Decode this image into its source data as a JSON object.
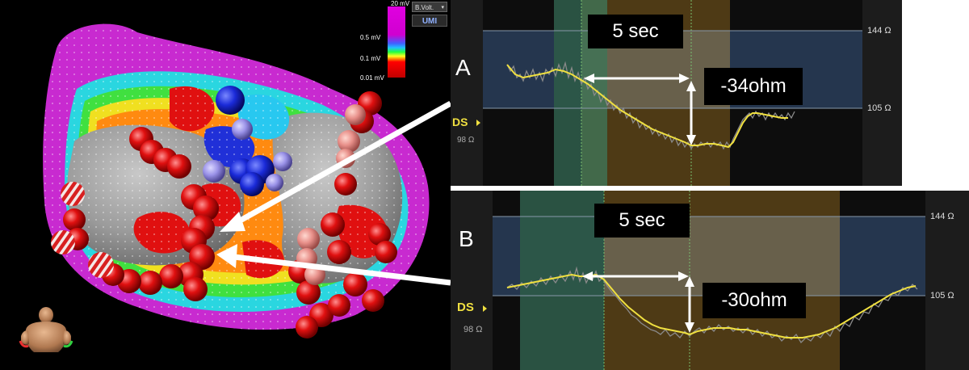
{
  "legend": {
    "max": "20 mV",
    "high": "0.5 mV",
    "low": "0.1 mV",
    "min": "0.01 mV",
    "dropdown": "B.Volt.",
    "logo": "UMI"
  },
  "panel_a": {
    "letter": "A",
    "time_label": "5 sec",
    "delta_label": "-34ohm",
    "upper_ohm": "144 Ω",
    "lower_ohm": "105 Ω",
    "ds_label": "DS",
    "ds_value": "98 Ω"
  },
  "panel_b": {
    "letter": "B",
    "time_label": "5 sec",
    "delta_label": "-30ohm",
    "upper_ohm": "144 Ω",
    "lower_ohm": "105 Ω",
    "ds_label": "DS",
    "ds_value": "98 Ω"
  },
  "colors": {
    "trace": "#f0e040",
    "band_blue": "#2a3e5a",
    "band_green": "#2e5a48",
    "band_orange": "#5a4318",
    "arrow": "#ffffff"
  }
}
